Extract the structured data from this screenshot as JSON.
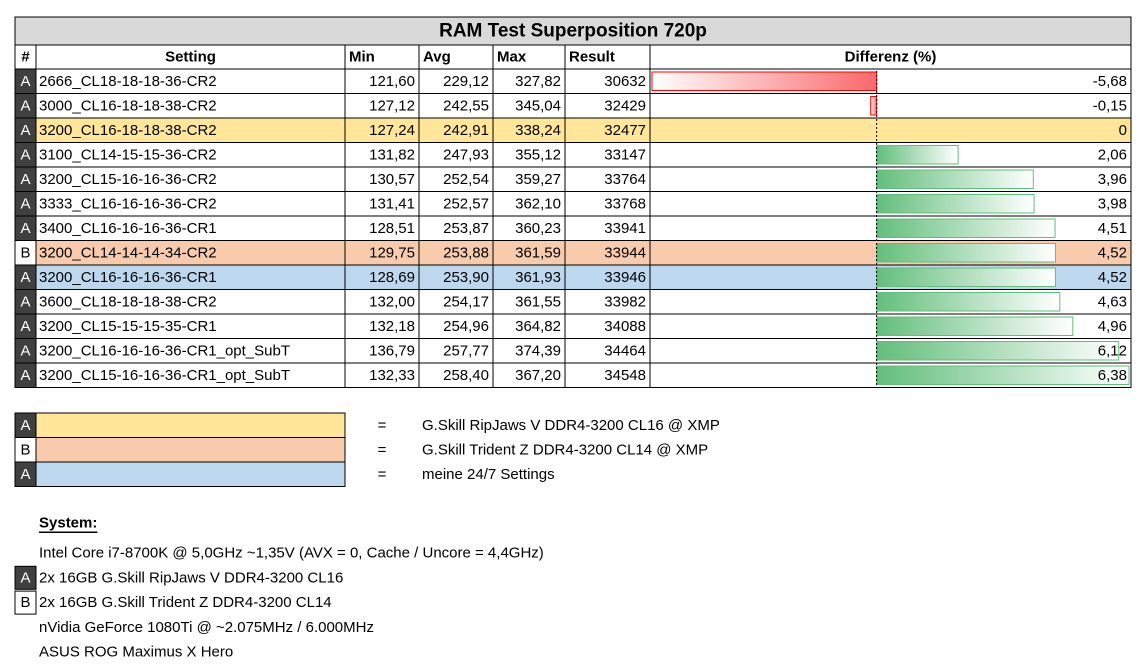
{
  "title": "RAM Test Superposition 720p",
  "table": {
    "header": [
      "#",
      "Setting",
      "Min",
      "Avg",
      "Max",
      "Result",
      "Differenz (%)"
    ],
    "rows": [
      {
        "group": "A",
        "setting": "2666_CL18-18-18-36-CR2",
        "min": "121,60",
        "avg": "229,12",
        "max": "327,82",
        "result": 30632,
        "diff": {
          "value": -5.68,
          "label": "-5,68"
        }
      },
      {
        "group": "A",
        "setting": "3000_CL16-18-18-38-CR2",
        "min": "127,12",
        "avg": "242,55",
        "max": "345,04",
        "result": 32429,
        "diff": {
          "value": -0.15,
          "label": "-0,15"
        }
      },
      {
        "group": "A",
        "setting": "3200_CL16-18-18-38-CR2",
        "min": "127,24",
        "avg": "242,91",
        "max": "338,24",
        "result": 32477,
        "diff": 0,
        "color": "#FFE699"
      },
      {
        "group": "A",
        "setting": "3100_CL14-15-15-36-CR2",
        "min": "131,82",
        "avg": "247,93",
        "max": "355,12",
        "result": 33147,
        "diff": {
          "value": 2.06,
          "label": "2,06"
        }
      },
      {
        "group": "A",
        "setting": "3200_CL15-16-16-36-CR2",
        "min": "130,57",
        "avg": "252,54",
        "max": "359,27",
        "result": 33764,
        "diff": {
          "value": 3.96,
          "label": "3,96"
        }
      },
      {
        "group": "A",
        "setting": "3333_CL16-16-16-36-CR2",
        "min": "131,41",
        "avg": "252,57",
        "max": "362,10",
        "result": 33768,
        "diff": {
          "value": 3.98,
          "label": "3,98"
        }
      },
      {
        "group": "A",
        "setting": "3400_CL16-16-16-36-CR1",
        "min": "128,51",
        "avg": "253,87",
        "max": "360,23",
        "result": 33941,
        "diff": {
          "value": 4.51,
          "label": "4,51"
        }
      },
      {
        "group": "B",
        "setting": "3200_CL14-14-14-34-CR2",
        "min": "129,75",
        "avg": "253,88",
        "max": "361,59",
        "result": 33944,
        "diff": {
          "value": 4.52,
          "label": "4,52"
        },
        "color": "#F8CBAD"
      },
      {
        "group": "A",
        "setting": "3200_CL16-16-16-36-CR1",
        "min": "128,69",
        "avg": "253,90",
        "max": "361,93",
        "result": 33946,
        "diff": {
          "value": 4.52,
          "label": "4,52"
        },
        "color": "#BDD7EE"
      },
      {
        "group": "A",
        "setting": "3600_CL18-18-18-38-CR2",
        "min": "132,00",
        "avg": "254,17",
        "max": "361,55",
        "result": 33982,
        "diff": {
          "value": 4.63,
          "label": "4,63"
        }
      },
      {
        "group": "A",
        "setting": "3200_CL15-15-15-35-CR1",
        "min": "132,18",
        "avg": "254,96",
        "max": "364,82",
        "result": 34088,
        "diff": {
          "value": 4.96,
          "label": "4,96"
        }
      },
      {
        "group": "A",
        "setting": "3200_CL16-16-16-36-CR1_opt_SubT",
        "min": "136,79",
        "avg": "257,77",
        "max": "374,39",
        "result": 34464,
        "diff": {
          "value": 6.12,
          "label": "6,12"
        }
      },
      {
        "group": "A",
        "setting": "3200_CL15-16-16-36-CR1_opt_SubT",
        "min": "132,33",
        "avg": "258,40",
        "max": "367,20",
        "result": 34548,
        "diff": {
          "value": 6.38,
          "label": "6,38"
        }
      }
    ]
  },
  "legend": [
    {
      "group": "A",
      "color": "#FFE699",
      "sep": "=",
      "text": "G.Skill RipJaws V DDR4-3200 CL16 @ XMP"
    },
    {
      "group": "B",
      "color": "#F8CBAD",
      "sep": "=",
      "text": "G.Skill  Trident Z DDR4-3200 CL14 @ XMP"
    },
    {
      "group": "A",
      "color": "#BDD7EE",
      "sep": "=",
      "text": "meine 24/7 Settings"
    }
  ],
  "system": {
    "heading": "System:",
    "lines": [
      {
        "text": "Intel Core i7-8700K @ 5,0GHz ~1,35V (AVX = 0, Cache / Uncore = 4,4GHz)"
      },
      {
        "group": "A",
        "text": "2x 16GB G.Skill RipJaws V DDR4-3200 CL16"
      },
      {
        "group": "B",
        "text": "2x 16GB G.Skill  Trident Z DDR4-3200 CL14"
      },
      {
        "text": "nVidia GeForce 1080Ti @ ~2.075MHz / 6.000MHz"
      },
      {
        "text": "ASUS ROG Maximus X Hero"
      }
    ]
  }
}
